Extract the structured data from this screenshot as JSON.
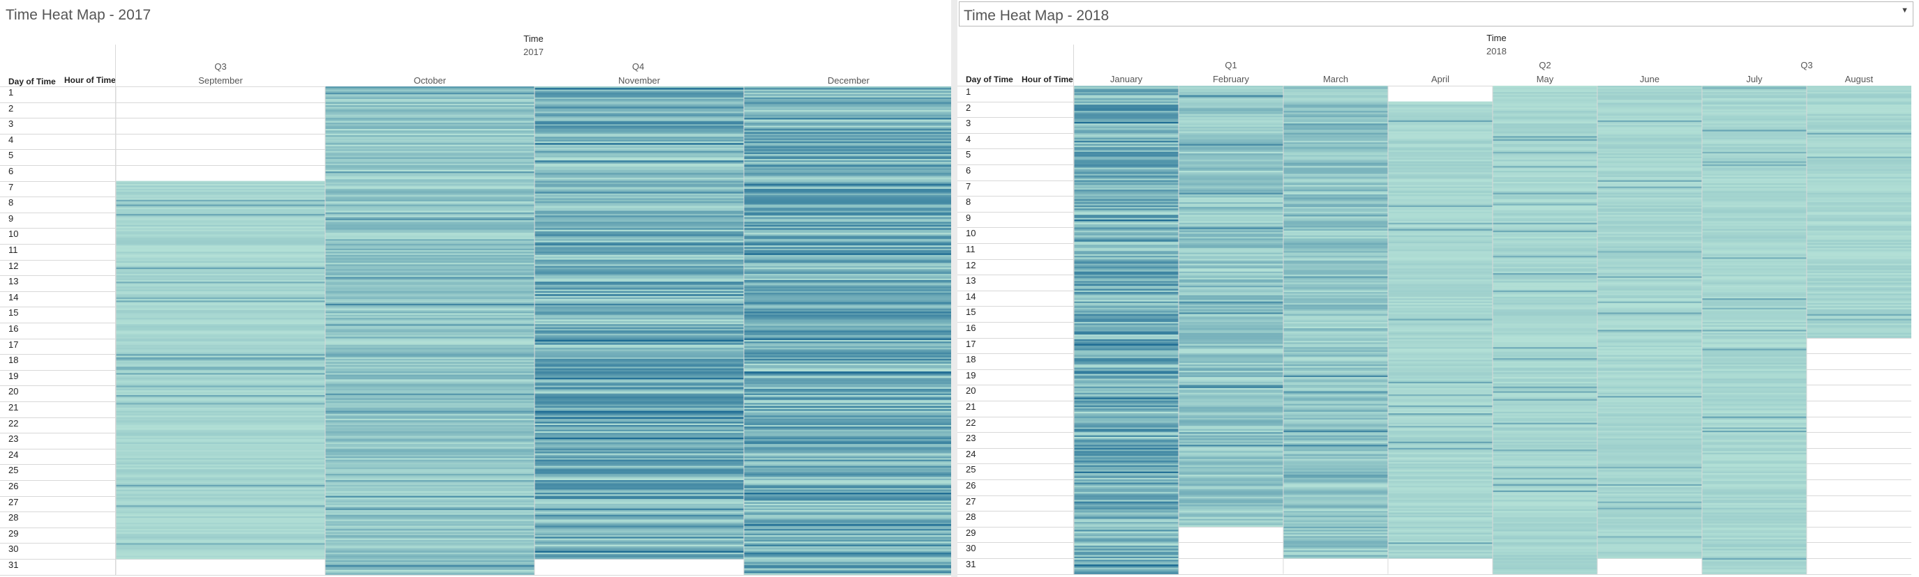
{
  "chart_data": [
    {
      "type": "heatmap",
      "title": "Time Heat Map - 2017",
      "column_header": "Time",
      "year": "2017",
      "row_headers": [
        "Day of Time",
        "Hour of Time"
      ],
      "quarters": [
        {
          "label": "Q3",
          "months": [
            "September"
          ]
        },
        {
          "label": "Q4",
          "months": [
            "October",
            "November",
            "December"
          ]
        }
      ],
      "months": [
        {
          "name": "September",
          "first_day": 7,
          "last_day": 30,
          "intensity": "light"
        },
        {
          "name": "October",
          "first_day": 1,
          "last_day": 31,
          "intensity": "medium"
        },
        {
          "name": "November",
          "first_day": 1,
          "last_day": 30,
          "intensity": "dark"
        },
        {
          "name": "December",
          "first_day": 1,
          "last_day": 31,
          "intensity": "dark"
        }
      ],
      "days": [
        "1",
        "2",
        "3",
        "4",
        "5",
        "6",
        "7",
        "8",
        "9",
        "10",
        "11",
        "12",
        "13",
        "14",
        "15",
        "16",
        "17",
        "18",
        "19",
        "20",
        "21",
        "22",
        "23",
        "24",
        "25",
        "26",
        "27",
        "28",
        "29",
        "30",
        "31"
      ],
      "color_scale": [
        "#b3e0d6",
        "#1d6b93"
      ]
    },
    {
      "type": "heatmap",
      "title": "Time Heat Map - 2018",
      "column_header": "Time",
      "year": "2018",
      "row_headers": [
        "Day of Time",
        "Hour of Time"
      ],
      "quarters": [
        {
          "label": "Q1",
          "months": [
            "January",
            "February",
            "March"
          ]
        },
        {
          "label": "Q2",
          "months": [
            "April",
            "May",
            "June"
          ]
        },
        {
          "label": "Q3",
          "months": [
            "July",
            "August"
          ]
        }
      ],
      "months": [
        {
          "name": "January",
          "first_day": 1,
          "last_day": 31,
          "intensity": "dark"
        },
        {
          "name": "February",
          "first_day": 1,
          "last_day": 28,
          "intensity": "medium"
        },
        {
          "name": "March",
          "first_day": 1,
          "last_day": 30,
          "intensity": "medium"
        },
        {
          "name": "April",
          "first_day": 2,
          "last_day": 30,
          "intensity": "light"
        },
        {
          "name": "May",
          "first_day": 1,
          "last_day": 31,
          "intensity": "light"
        },
        {
          "name": "June",
          "first_day": 1,
          "last_day": 30,
          "intensity": "light"
        },
        {
          "name": "July",
          "first_day": 1,
          "last_day": 31,
          "intensity": "light"
        },
        {
          "name": "August",
          "first_day": 1,
          "last_day": 16,
          "intensity": "light"
        }
      ],
      "days": [
        "1",
        "2",
        "3",
        "4",
        "5",
        "6",
        "7",
        "8",
        "9",
        "10",
        "11",
        "12",
        "13",
        "14",
        "15",
        "16",
        "17",
        "18",
        "19",
        "20",
        "21",
        "22",
        "23",
        "24",
        "25",
        "26",
        "27",
        "28",
        "29",
        "30",
        "31"
      ],
      "color_scale": [
        "#b3e0d6",
        "#1d6b93"
      ]
    }
  ]
}
